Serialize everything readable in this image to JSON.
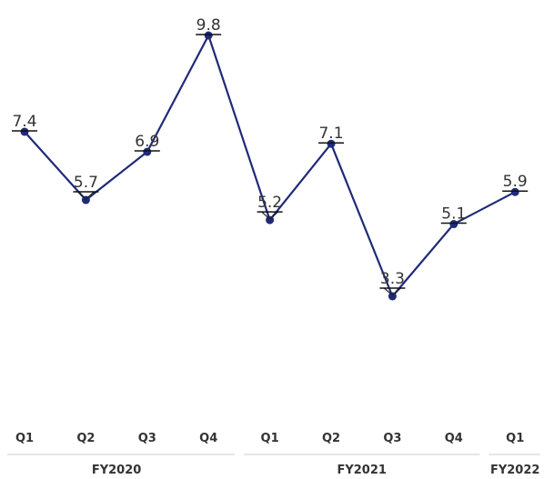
{
  "chart_data": {
    "type": "line",
    "title": "",
    "xlabel": "",
    "ylabel": "",
    "quarters": [
      "Q1",
      "Q2",
      "Q3",
      "Q4",
      "Q1",
      "Q2",
      "Q3",
      "Q4",
      "Q1"
    ],
    "years": [
      {
        "label": "FY2020",
        "count": 4
      },
      {
        "label": "FY2021",
        "count": 4
      },
      {
        "label": "FY2022",
        "count": 1
      }
    ],
    "values": [
      7.4,
      5.7,
      6.9,
      9.8,
      5.2,
      7.1,
      3.3,
      5.1,
      5.9
    ],
    "value_labels": [
      "7.4",
      "5.7",
      "6.9",
      "9.8",
      "5.2",
      "7.1",
      "3.3",
      "5.1",
      "5.9"
    ],
    "series": [
      {
        "values": [
          7.4,
          5.7,
          6.9,
          9.8,
          5.2,
          7.1,
          3.3,
          5.1,
          5.9
        ]
      }
    ],
    "line_color": "#1f2a78",
    "marker_color": "#1f2a78",
    "label_color": "#333333",
    "grid": false,
    "legend": "none"
  }
}
